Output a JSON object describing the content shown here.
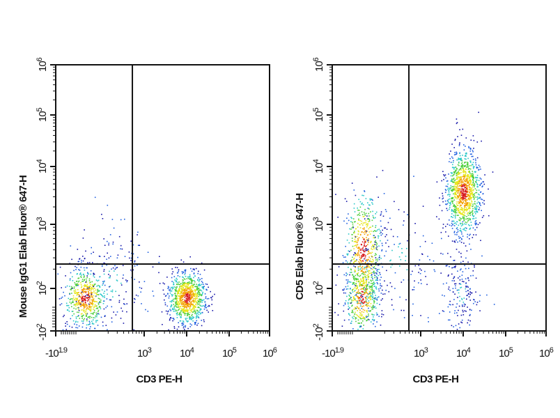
{
  "chart_data": [
    {
      "type": "scatter",
      "subtype": "flow-cytometry-density-dot-plot",
      "xlabel": "CD3 PE-H",
      "ylabel": "Mouse IgG1 Elab Fluor® 647-H",
      "x_scale": "biexponential",
      "y_scale": "biexponential",
      "xlim": [
        -79,
        1000000
      ],
      "ylim": [
        -100,
        1000000
      ],
      "x_ticks": [
        {
          "base": "-10",
          "exp": "1.9"
        },
        {
          "base": "10",
          "exp": "3"
        },
        {
          "base": "10",
          "exp": "4"
        },
        {
          "base": "10",
          "exp": "5"
        },
        {
          "base": "10",
          "exp": "6"
        }
      ],
      "y_ticks": [
        {
          "base": "-10",
          "exp": "2"
        },
        {
          "base": "10",
          "exp": "2"
        },
        {
          "base": "10",
          "exp": "3"
        },
        {
          "base": "10",
          "exp": "4"
        },
        {
          "base": "10",
          "exp": "5"
        },
        {
          "base": "10",
          "exp": "6"
        }
      ],
      "quadrant_gate": {
        "x": 590,
        "y": 240
      },
      "populations": [
        {
          "name": "CD3-negative",
          "x": 63,
          "y": 57,
          "sd_x": 0.25,
          "sd_y": 0.25,
          "count": 550
        },
        {
          "name": "CD3-positive",
          "x": 10000,
          "y": 57,
          "sd_x": 0.22,
          "sd_y": 0.22,
          "count": 900
        },
        {
          "name": "scatter-low",
          "x": 200,
          "y": 120,
          "sd_x": 0.6,
          "sd_y": 0.5,
          "count": 220
        }
      ]
    },
    {
      "type": "scatter",
      "subtype": "flow-cytometry-density-dot-plot",
      "xlabel": "CD3 PE-H",
      "ylabel": "CD5 Elab Fluor® 647-H",
      "x_scale": "biexponential",
      "y_scale": "biexponential",
      "xlim": [
        -79,
        1000000
      ],
      "ylim": [
        -100,
        1000000
      ],
      "x_ticks": [
        {
          "base": "-10",
          "exp": "1.9"
        },
        {
          "base": "10",
          "exp": "3"
        },
        {
          "base": "10",
          "exp": "4"
        },
        {
          "base": "10",
          "exp": "5"
        },
        {
          "base": "10",
          "exp": "6"
        }
      ],
      "y_ticks": [
        {
          "base": "-10",
          "exp": "2"
        },
        {
          "base": "10",
          "exp": "2"
        },
        {
          "base": "10",
          "exp": "3"
        },
        {
          "base": "10",
          "exp": "4"
        },
        {
          "base": "10",
          "exp": "5"
        },
        {
          "base": "10",
          "exp": "6"
        }
      ],
      "quadrant_gate": {
        "x": 590,
        "y": 240
      },
      "populations": [
        {
          "name": "CD3-CD5-low",
          "x": 63,
          "y": 57,
          "sd_x": 0.2,
          "sd_y": 0.3,
          "count": 450
        },
        {
          "name": "CD3-CD5-mid",
          "x": 70,
          "y": 400,
          "sd_x": 0.22,
          "sd_y": 0.5,
          "count": 550
        },
        {
          "name": "CD3+CD5+",
          "x": 10000,
          "y": 3700,
          "sd_x": 0.2,
          "sd_y": 0.35,
          "count": 1100
        },
        {
          "name": "CD3+CD5-",
          "x": 9000,
          "y": 80,
          "sd_x": 0.2,
          "sd_y": 0.35,
          "count": 170
        },
        {
          "name": "scatter-mid",
          "x": 400,
          "y": 300,
          "sd_x": 0.7,
          "sd_y": 0.5,
          "count": 200
        }
      ]
    }
  ]
}
